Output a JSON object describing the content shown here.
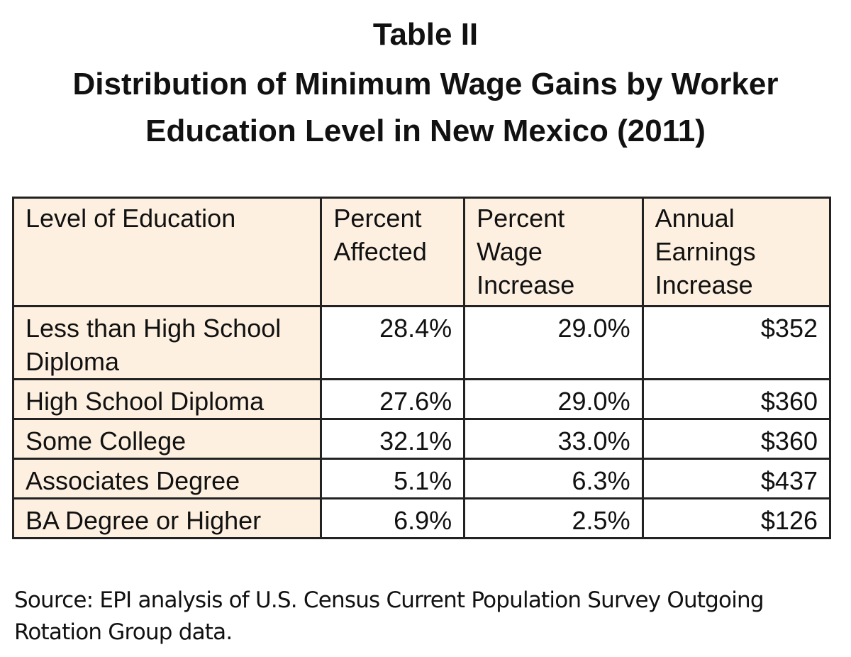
{
  "header": {
    "label": "Table II",
    "title_lines": [
      "Distribution of Minimum Wage Gains by Worker",
      "Education Level in New Mexico (2011)"
    ]
  },
  "table": {
    "columns": [
      "Level of Education",
      "Percent Affected",
      "Percent Wage Increase",
      "Annual Earnings Increase"
    ],
    "rows": [
      [
        "Less than High School Diploma",
        "28.4%",
        "29.0%",
        "$352"
      ],
      [
        "High School Diploma",
        "27.6%",
        "29.0%",
        "$360"
      ],
      [
        "Some College",
        "32.1%",
        "33.0%",
        "$360"
      ],
      [
        "Associates Degree",
        "5.1%",
        "6.3%",
        "$437"
      ],
      [
        "BA Degree or Higher",
        "6.9%",
        "2.5%",
        "$126"
      ]
    ]
  },
  "source": "Source: EPI analysis of U.S. Census Current Population Survey Outgoing Rotation Group data."
}
